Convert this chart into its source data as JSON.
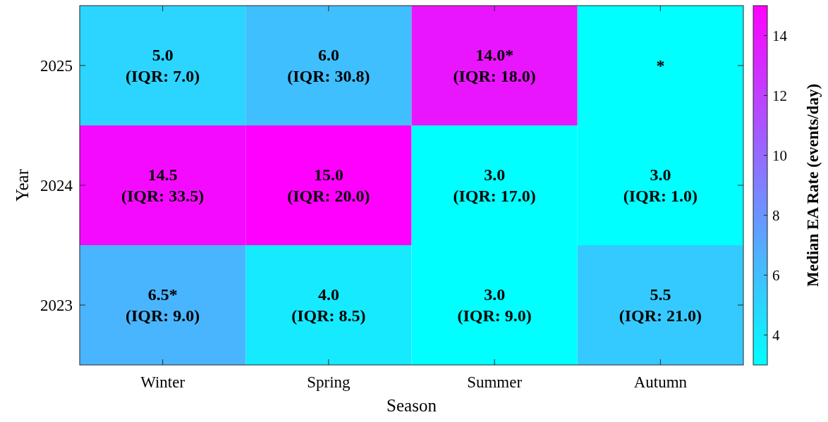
{
  "chart_data": {
    "type": "heatmap",
    "xlabel": "Season",
    "ylabel": "Year",
    "clabel": "Median EA Rate (events/day)",
    "categories": [
      "Winter",
      "Spring",
      "Summer",
      "Autumn"
    ],
    "y_categories": [
      "2025",
      "2024",
      "2023"
    ],
    "cells": [
      [
        5.0,
        6.0,
        14.0,
        3
      ],
      [
        14.5,
        15.0,
        3.0,
        3.0
      ],
      [
        6.5,
        4.0,
        3.0,
        5.5
      ]
    ],
    "cell_labels": [
      [
        "5.0\n(IQR: 7.0)",
        "6.0\n(IQR: 30.8)",
        "14.0*\n(IQR: 18.0)",
        "*"
      ],
      [
        "14.5\n(IQR: 33.5)",
        "15.0\n(IQR: 20.0)",
        "3.0\n(IQR: 17.0)",
        "3.0\n(IQR: 1.0)"
      ],
      [
        "6.5*\n(IQR: 9.0)",
        "4.0\n(IQR: 8.5)",
        "3.0\n(IQR: 9.0)",
        "5.5\n(IQR: 21.0)"
      ]
    ],
    "clim": [
      3,
      15
    ],
    "cticks": [
      4,
      6,
      8,
      10,
      12,
      14
    ]
  }
}
